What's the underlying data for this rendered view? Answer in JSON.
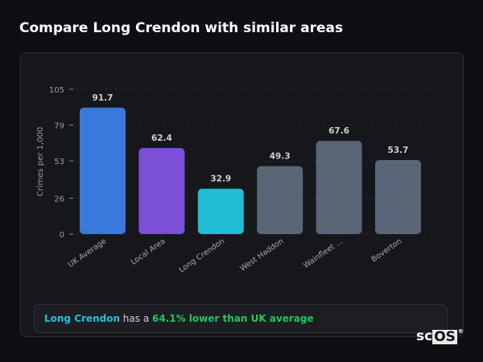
{
  "title": "Compare Long Crendon with similar areas",
  "chart_data": {
    "type": "bar",
    "categories": [
      "UK Average",
      "Local Area",
      "Long Crendon",
      "West Haddon",
      "Wainfleet ...",
      "Boverton"
    ],
    "values": [
      91.7,
      62.4,
      32.9,
      49.3,
      67.6,
      53.7
    ],
    "colors": [
      "#3a78dc",
      "#7b4fd6",
      "#22bcd4",
      "#5a6577",
      "#5a6577",
      "#5a6577"
    ],
    "ylabel": "Crimes per 1,000",
    "yticks": [
      0,
      26,
      53,
      79,
      105
    ],
    "ylim": [
      0,
      105
    ],
    "grid": true
  },
  "footer": {
    "area": "Long Crendon",
    "middle": " has a ",
    "highlight": "64.1% lower than UK average"
  },
  "logo": {
    "text_sc": "sc",
    "text_os": "OS",
    "mark": "®"
  }
}
